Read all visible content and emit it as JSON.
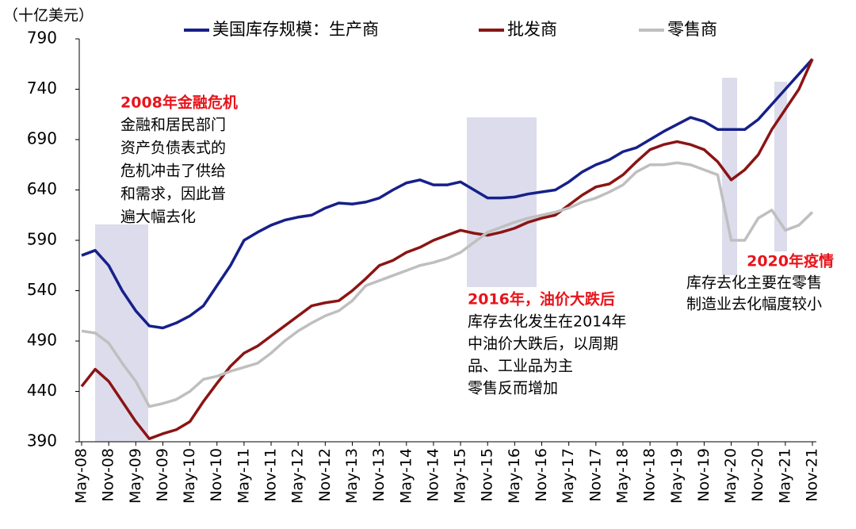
{
  "chart_data": {
    "type": "line",
    "unit_label": "（十亿美元）",
    "categories": [
      "May-08",
      null,
      "Nov-08",
      null,
      "May-09",
      null,
      "Nov-09",
      null,
      "May-10",
      null,
      "Nov-10",
      null,
      "May-11",
      null,
      "Nov-11",
      null,
      "May-12",
      null,
      "Nov-12",
      null,
      "May-13",
      null,
      "Nov-13",
      null,
      "May-14",
      null,
      "Nov-14",
      null,
      "May-15",
      null,
      "Nov-15",
      null,
      "May-16",
      null,
      "Nov-16",
      null,
      "May-17",
      null,
      "Nov-17",
      null,
      "May-18",
      null,
      "Nov-18",
      null,
      "May-19",
      null,
      "Nov-19",
      null,
      "May-20",
      null,
      "Nov-20",
      null,
      "May-21",
      null,
      "Nov-21"
    ],
    "series": [
      {
        "name": "美国库存规模：生产商",
        "color": "#16208a",
        "values": [
          575,
          580,
          565,
          540,
          520,
          505,
          503,
          508,
          515,
          525,
          545,
          565,
          590,
          598,
          605,
          610,
          613,
          615,
          622,
          627,
          626,
          628,
          632,
          640,
          647,
          650,
          645,
          645,
          648,
          640,
          632,
          632,
          633,
          636,
          638,
          640,
          648,
          658,
          665,
          670,
          678,
          682,
          690,
          698,
          705,
          712,
          708,
          700,
          700,
          700,
          710,
          725,
          740,
          755,
          770
        ]
      },
      {
        "name": "批发商",
        "color": "#8b1414",
        "values": [
          445,
          462,
          450,
          430,
          410,
          393,
          398,
          402,
          410,
          430,
          448,
          465,
          478,
          485,
          495,
          505,
          515,
          525,
          528,
          530,
          540,
          552,
          565,
          570,
          578,
          583,
          590,
          595,
          600,
          597,
          595,
          598,
          602,
          608,
          612,
          615,
          625,
          635,
          643,
          646,
          655,
          668,
          680,
          685,
          688,
          685,
          680,
          668,
          650,
          660,
          675,
          700,
          720,
          740,
          770
        ]
      },
      {
        "name": "零售商",
        "color": "#bfbfbf",
        "values": [
          500,
          498,
          488,
          468,
          450,
          425,
          428,
          432,
          440,
          452,
          455,
          460,
          464,
          468,
          478,
          490,
          500,
          508,
          515,
          520,
          530,
          545,
          550,
          555,
          560,
          565,
          568,
          572,
          578,
          588,
          598,
          603,
          608,
          612,
          615,
          618,
          622,
          628,
          632,
          638,
          645,
          658,
          665,
          665,
          667,
          665,
          660,
          655,
          590,
          590,
          612,
          620,
          600,
          605,
          618
        ]
      }
    ],
    "ylim": [
      390,
      790
    ],
    "yticks": [
      390,
      440,
      490,
      540,
      590,
      640,
      690,
      740,
      790
    ],
    "annotations": [
      {
        "title": "2008年金融危机",
        "lines": [
          "金融和居民部门",
          "资产负债表式的",
          "危机冲击了供给",
          "和需求，因此普",
          "遍大幅去化"
        ]
      },
      {
        "title": "2016年，油价大跌后",
        "lines": [
          "库存去化发生在2014年",
          "中油价大跌后，以周期",
          "品、工业品为主",
          "零售反而增加"
        ]
      },
      {
        "title": "2020年疫情",
        "lines": [
          "库存去化主要在零售",
          "制造业去化幅度较小"
        ]
      }
    ]
  }
}
